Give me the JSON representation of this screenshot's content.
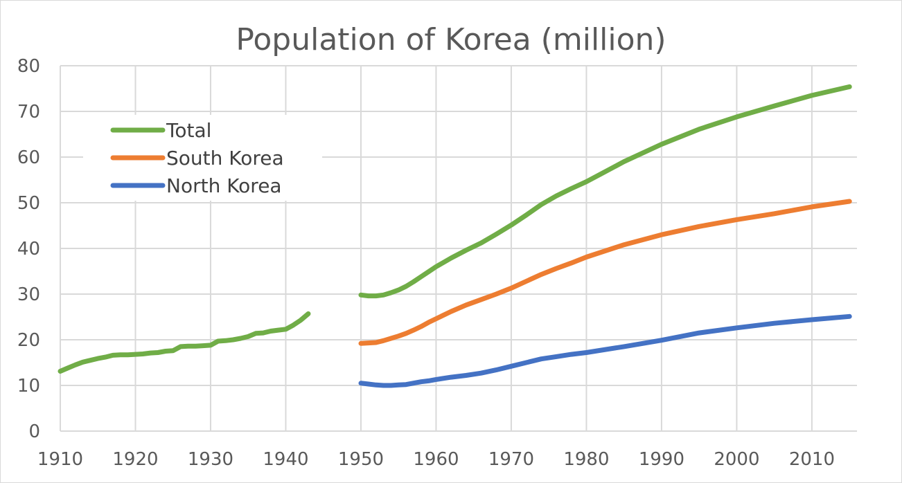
{
  "chart_data": {
    "type": "line",
    "title": "Population of Korea (million)",
    "xlabel": "",
    "ylabel": "",
    "xlim": [
      1910,
      2016
    ],
    "ylim": [
      0,
      80
    ],
    "x_ticks": [
      "1910",
      "1920",
      "1930",
      "1940",
      "1950",
      "1960",
      "1970",
      "1980",
      "1990",
      "2000",
      "2010"
    ],
    "y_ticks": [
      "0",
      "10",
      "20",
      "30",
      "40",
      "50",
      "60",
      "70",
      "80"
    ],
    "grid": true,
    "legend_position": "top-left",
    "series": [
      {
        "name": "Total",
        "color": "#70ad47",
        "segments": [
          [
            [
              1910,
              13.1
            ],
            [
              1911,
              13.8
            ],
            [
              1912,
              14.5
            ],
            [
              1913,
              15.1
            ],
            [
              1914,
              15.5
            ],
            [
              1915,
              15.9
            ],
            [
              1916,
              16.2
            ],
            [
              1917,
              16.6
            ],
            [
              1918,
              16.7
            ],
            [
              1919,
              16.7
            ],
            [
              1920,
              16.8
            ],
            [
              1921,
              16.9
            ],
            [
              1922,
              17.1
            ],
            [
              1923,
              17.2
            ],
            [
              1924,
              17.5
            ],
            [
              1925,
              17.6
            ],
            [
              1926,
              18.5
            ],
            [
              1927,
              18.6
            ],
            [
              1928,
              18.6
            ],
            [
              1929,
              18.7
            ],
            [
              1930,
              18.8
            ],
            [
              1931,
              19.7
            ],
            [
              1932,
              19.8
            ],
            [
              1933,
              20.0
            ],
            [
              1934,
              20.3
            ],
            [
              1935,
              20.7
            ],
            [
              1936,
              21.4
            ],
            [
              1937,
              21.5
            ],
            [
              1938,
              21.9
            ],
            [
              1939,
              22.1
            ],
            [
              1940,
              22.3
            ],
            [
              1941,
              23.2
            ],
            [
              1942,
              24.3
            ],
            [
              1943,
              25.7
            ]
          ],
          [
            [
              1950,
              29.8
            ],
            [
              1951,
              29.6
            ],
            [
              1952,
              29.6
            ],
            [
              1953,
              29.8
            ],
            [
              1954,
              30.3
            ],
            [
              1955,
              30.9
            ],
            [
              1956,
              31.7
            ],
            [
              1957,
              32.7
            ],
            [
              1958,
              33.8
            ],
            [
              1959,
              34.9
            ],
            [
              1960,
              36.0
            ],
            [
              1962,
              37.9
            ],
            [
              1964,
              39.6
            ],
            [
              1966,
              41.2
            ],
            [
              1968,
              43.1
            ],
            [
              1970,
              45.1
            ],
            [
              1972,
              47.3
            ],
            [
              1974,
              49.6
            ],
            [
              1976,
              51.5
            ],
            [
              1978,
              53.1
            ],
            [
              1980,
              54.6
            ],
            [
              1985,
              59.0
            ],
            [
              1990,
              62.8
            ],
            [
              1995,
              66.1
            ],
            [
              2000,
              68.8
            ],
            [
              2005,
              71.2
            ],
            [
              2010,
              73.5
            ],
            [
              2015,
              75.4
            ]
          ]
        ]
      },
      {
        "name": "South Korea",
        "color": "#ed7d31",
        "segments": [
          [
            [
              1950,
              19.2
            ],
            [
              1951,
              19.3
            ],
            [
              1952,
              19.4
            ],
            [
              1953,
              19.8
            ],
            [
              1954,
              20.3
            ],
            [
              1955,
              20.8
            ],
            [
              1956,
              21.4
            ],
            [
              1957,
              22.1
            ],
            [
              1958,
              22.9
            ],
            [
              1959,
              23.8
            ],
            [
              1960,
              24.6
            ],
            [
              1962,
              26.2
            ],
            [
              1964,
              27.6
            ],
            [
              1966,
              28.8
            ],
            [
              1968,
              30.0
            ],
            [
              1970,
              31.3
            ],
            [
              1972,
              32.8
            ],
            [
              1974,
              34.3
            ],
            [
              1976,
              35.6
            ],
            [
              1978,
              36.8
            ],
            [
              1980,
              38.1
            ],
            [
              1985,
              40.8
            ],
            [
              1990,
              43.0
            ],
            [
              1995,
              44.8
            ],
            [
              2000,
              46.3
            ],
            [
              2005,
              47.6
            ],
            [
              2010,
              49.1
            ],
            [
              2015,
              50.3
            ]
          ]
        ]
      },
      {
        "name": "North Korea",
        "color": "#4472c4",
        "segments": [
          [
            [
              1950,
              10.5
            ],
            [
              1951,
              10.3
            ],
            [
              1952,
              10.1
            ],
            [
              1953,
              10.0
            ],
            [
              1954,
              10.0
            ],
            [
              1955,
              10.1
            ],
            [
              1956,
              10.2
            ],
            [
              1957,
              10.5
            ],
            [
              1958,
              10.8
            ],
            [
              1959,
              11.0
            ],
            [
              1960,
              11.3
            ],
            [
              1962,
              11.8
            ],
            [
              1964,
              12.2
            ],
            [
              1966,
              12.7
            ],
            [
              1968,
              13.4
            ],
            [
              1970,
              14.2
            ],
            [
              1972,
              15.0
            ],
            [
              1974,
              15.8
            ],
            [
              1976,
              16.3
            ],
            [
              1978,
              16.8
            ],
            [
              1980,
              17.2
            ],
            [
              1985,
              18.5
            ],
            [
              1990,
              19.9
            ],
            [
              1995,
              21.5
            ],
            [
              2000,
              22.6
            ],
            [
              2005,
              23.6
            ],
            [
              2010,
              24.4
            ],
            [
              2015,
              25.1
            ]
          ]
        ]
      }
    ]
  }
}
